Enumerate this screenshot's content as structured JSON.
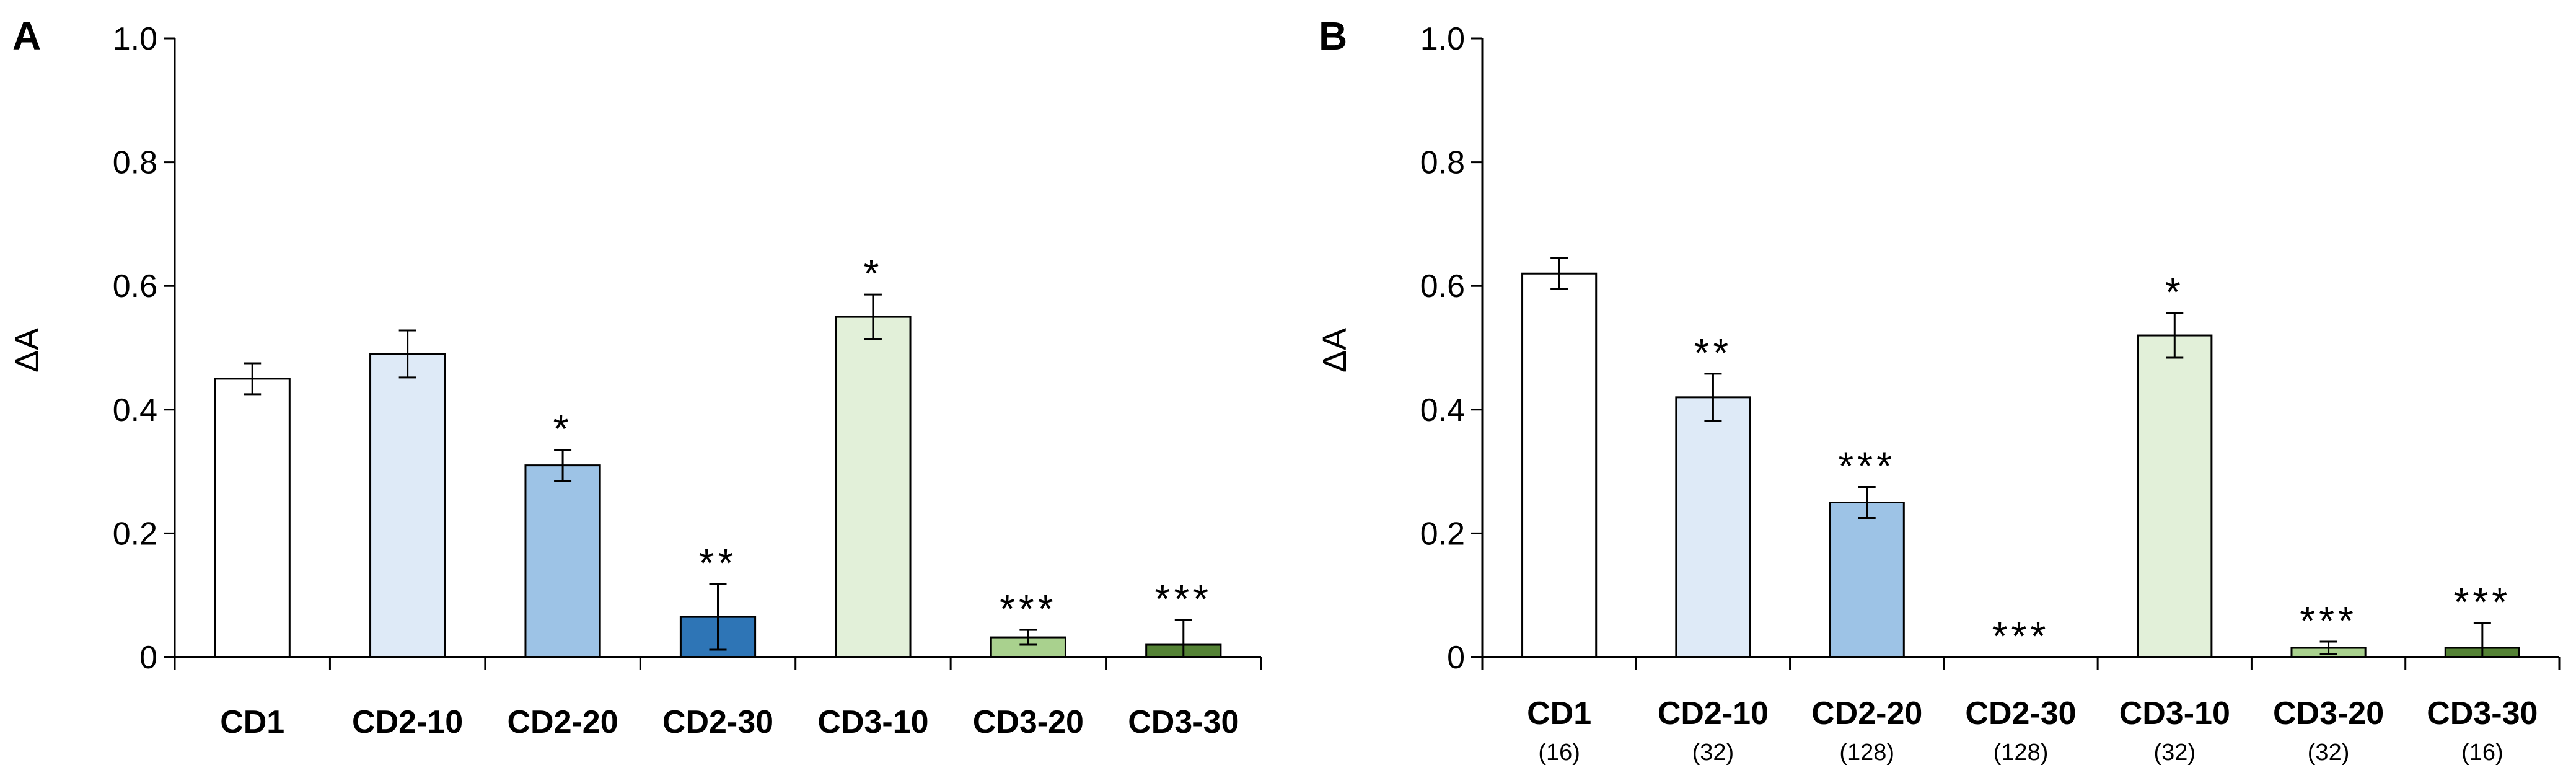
{
  "chart_data": [
    {
      "type": "bar",
      "panel_label": "A",
      "title": "",
      "xlabel": "",
      "ylabel": "ΔA",
      "ylim": [
        0,
        1.0
      ],
      "yticks": [
        "0",
        "0.2",
        "0.4",
        "0.6",
        "0.8",
        "1.0"
      ],
      "grid": false,
      "categories": [
        "CD1",
        "CD2-10",
        "CD2-20",
        "CD2-30",
        "CD3-10",
        "CD3-20",
        "CD3-30"
      ],
      "sublabels": [],
      "values": [
        0.45,
        0.49,
        0.31,
        0.065,
        0.55,
        0.032,
        0.02
      ],
      "errors": [
        0.025,
        0.038,
        0.025,
        0.053,
        0.036,
        0.012,
        0.04
      ],
      "significance": [
        "",
        "",
        "*",
        "**",
        "*",
        "***",
        "***"
      ],
      "colors": [
        "#ffffff",
        "#deeaf7",
        "#9dc3e6",
        "#2e75b6",
        "#e2f0d9",
        "#a9d18e",
        "#548235"
      ]
    },
    {
      "type": "bar",
      "panel_label": "B",
      "title": "",
      "xlabel": "",
      "ylabel": "ΔA",
      "ylim": [
        0,
        1.0
      ],
      "yticks": [
        "0",
        "0.2",
        "0.4",
        "0.6",
        "0.8",
        "1.0"
      ],
      "grid": false,
      "categories": [
        "CD1",
        "CD2-10",
        "CD2-20",
        "CD2-30",
        "CD3-10",
        "CD3-20",
        "CD3-30"
      ],
      "sublabels": [
        "(16)",
        "(32)",
        "(128)",
        "(128)",
        "(32)",
        "(32)",
        "(16)"
      ],
      "values": [
        0.62,
        0.42,
        0.25,
        0.0,
        0.52,
        0.015,
        0.015
      ],
      "errors": [
        0.025,
        0.038,
        0.025,
        0.0,
        0.036,
        0.01,
        0.04
      ],
      "significance": [
        "",
        "**",
        "***",
        "***",
        "*",
        "***",
        "***"
      ],
      "colors": [
        "#ffffff",
        "#deeaf7",
        "#9dc3e6",
        "#2e75b6",
        "#e2f0d9",
        "#a9d18e",
        "#548235"
      ]
    }
  ]
}
